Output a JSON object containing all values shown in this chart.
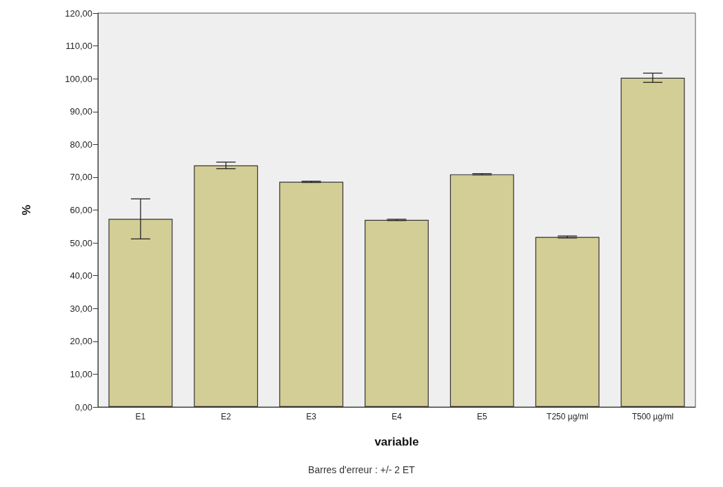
{
  "chart_data": {
    "type": "bar",
    "xlabel": "variable",
    "ylabel": "%",
    "categories": [
      "E1",
      "E2",
      "E3",
      "E4",
      "E5",
      "T250 µg/ml",
      "T500 µg/ml"
    ],
    "values": [
      57.3,
      73.6,
      68.6,
      57.0,
      70.9,
      51.8,
      100.3
    ],
    "errors": [
      6.1,
      1.0,
      0.2,
      0.2,
      0.2,
      0.3,
      1.4
    ],
    "color": "#d3cd96",
    "ylim": [
      0,
      120
    ],
    "yticks": [
      {
        "value": 0,
        "label": "0,00"
      },
      {
        "value": 10,
        "label": "10,00"
      },
      {
        "value": 20,
        "label": "20,00"
      },
      {
        "value": 30,
        "label": "30,00"
      },
      {
        "value": 40,
        "label": "40,00"
      },
      {
        "value": 50,
        "label": "50,00"
      },
      {
        "value": 60,
        "label": "60,00"
      },
      {
        "value": 70,
        "label": "70,00"
      },
      {
        "value": 80,
        "label": "80,00"
      },
      {
        "value": 90,
        "label": "90,00"
      },
      {
        "value": 100,
        "label": "100,00"
      },
      {
        "value": 110,
        "label": "110,00"
      },
      {
        "value": 120,
        "label": "120,00"
      }
    ],
    "grid": false,
    "annotations": [
      "Barres d'erreur : +/- 2 ET"
    ]
  }
}
